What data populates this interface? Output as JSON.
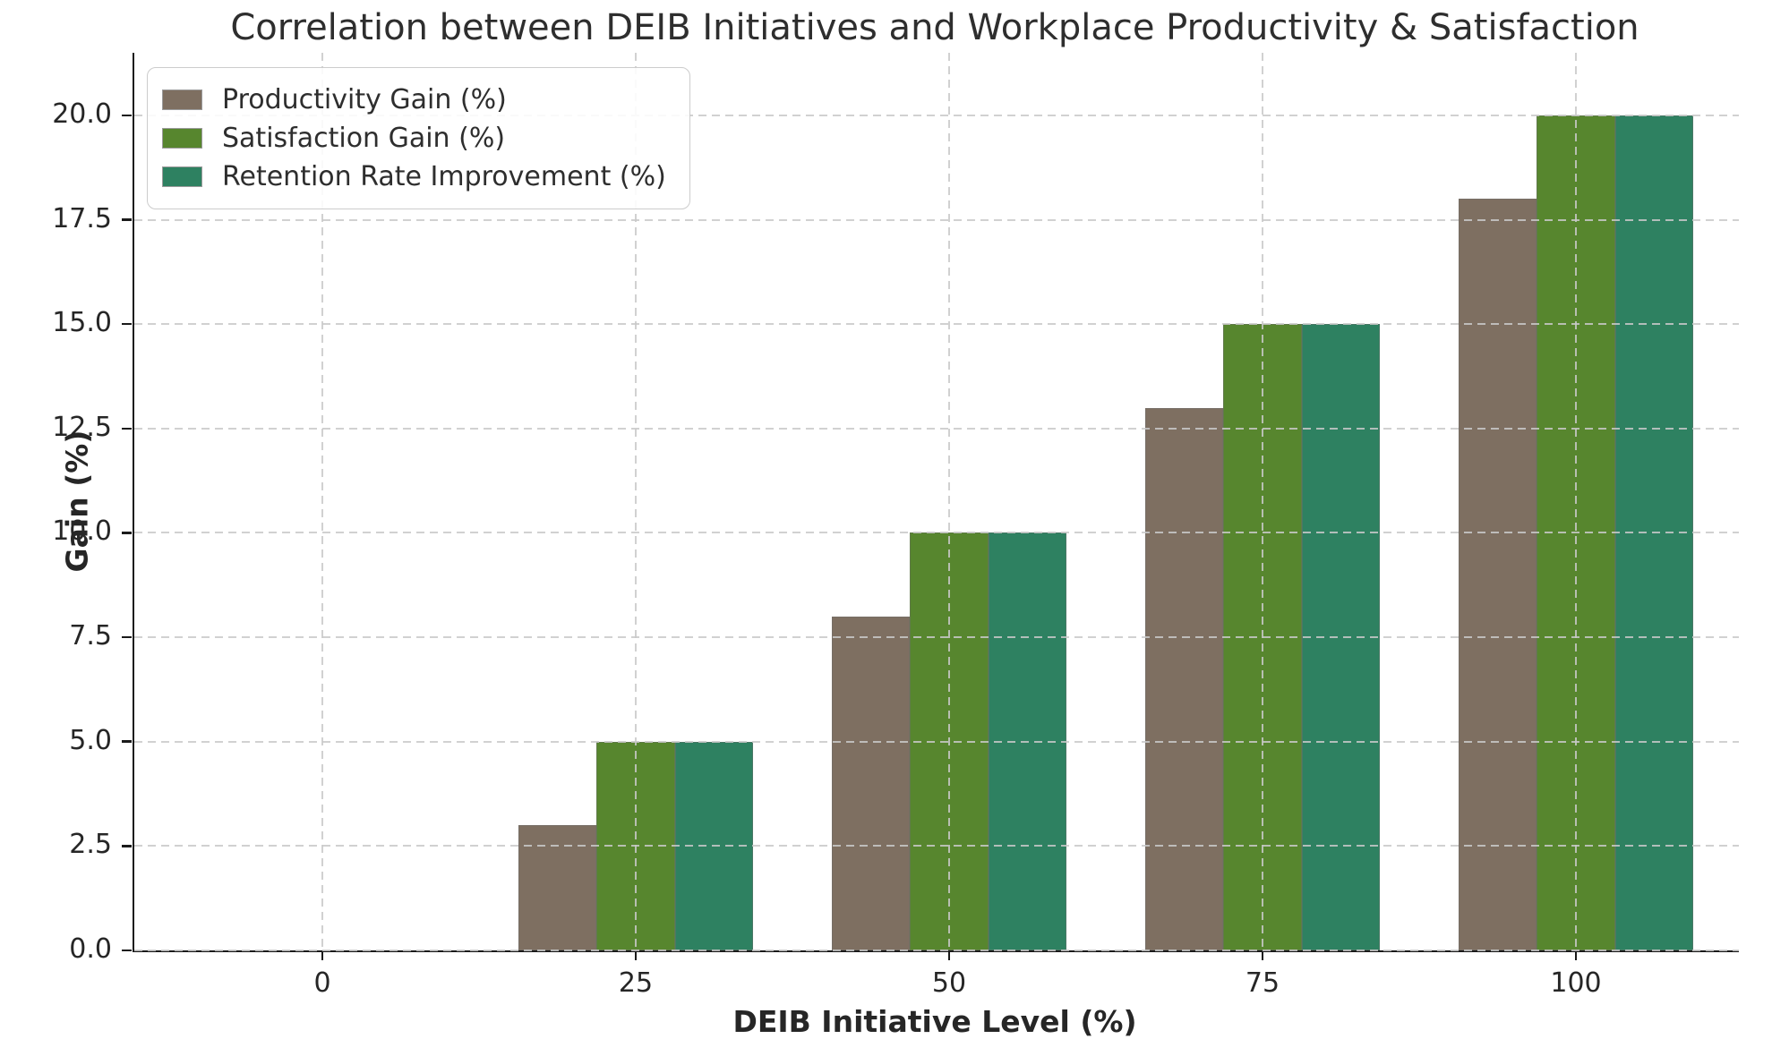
{
  "title": "Correlation between DEIB Initiatives and Workplace Productivity & Satisfaction",
  "chart_data": {
    "type": "bar",
    "title": "Correlation between DEIB Initiatives and Workplace Productivity & Satisfaction",
    "xlabel": "DEIB Initiative Level (%)",
    "ylabel": "Gain (%)",
    "categories": [
      0,
      25,
      50,
      75,
      100
    ],
    "xtick_labels": [
      "0",
      "25",
      "50",
      "75",
      "100"
    ],
    "yticks": [
      0,
      2.5,
      5,
      7.5,
      10,
      12.5,
      15,
      17.5,
      20
    ],
    "ytick_labels": [
      "0.0",
      "2.5",
      "5.0",
      "7.5",
      "10.0",
      "12.5",
      "15.0",
      "17.5",
      "20.0"
    ],
    "series": [
      {
        "name": "Productivity Gain (%)",
        "color": "#7e6f61",
        "values": [
          0,
          3,
          8,
          13,
          18
        ]
      },
      {
        "name": "Satisfaction Gain (%)",
        "color": "#57862e",
        "values": [
          0,
          5,
          10,
          15,
          20
        ]
      },
      {
        "name": "Retention Rate Improvement (%)",
        "color": "#2e8161",
        "values": [
          0,
          5,
          10,
          15,
          20
        ]
      }
    ],
    "grid": true,
    "grid_style": "dashed",
    "grid_color": "#c9c9c9",
    "spine_color": "#1a1a1a",
    "bar_edge_color": "#6e6e6e",
    "background": "#ffffff",
    "legend_position": "upper left",
    "xlim": [
      -15,
      113
    ],
    "ylim": [
      0,
      21.5
    ],
    "bar_width": 6.25
  }
}
